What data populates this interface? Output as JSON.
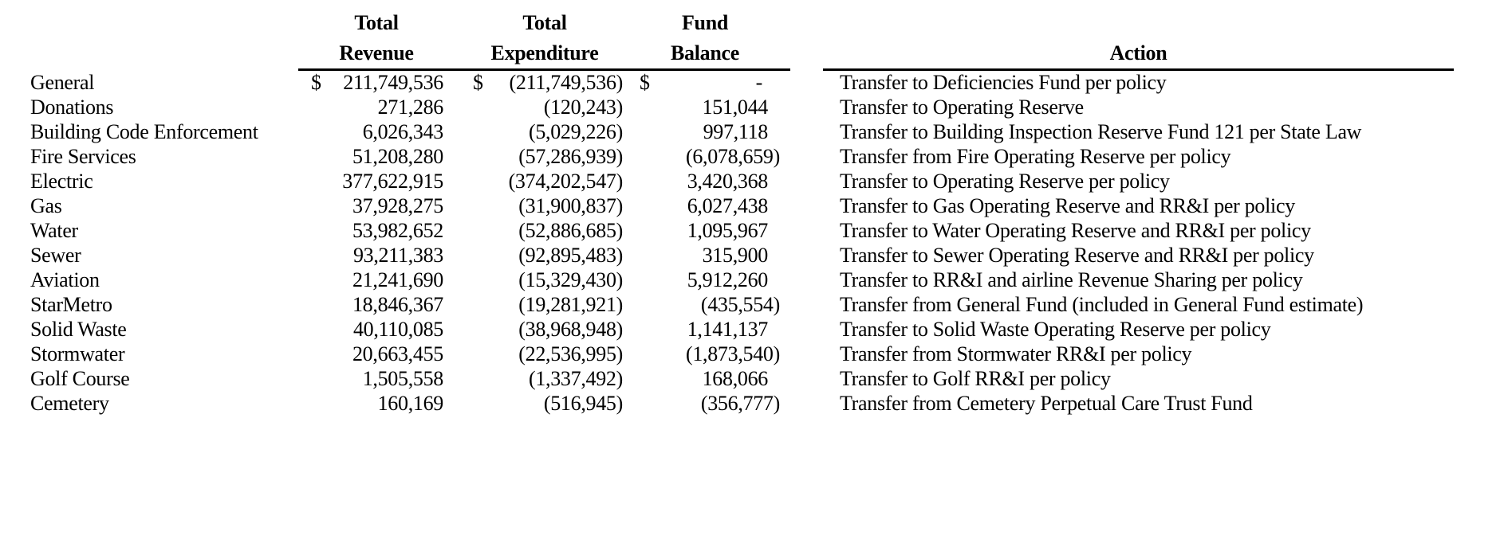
{
  "table": {
    "currency_symbol": "$",
    "headers": {
      "revenue_line1": "Total",
      "revenue_line2": "Revenue",
      "expenditure_line1": "Total",
      "expenditure_line2": "Expenditure",
      "balance_line1": "Fund",
      "balance_line2": "Balance",
      "action": "Action"
    },
    "rows": [
      {
        "fund": "General",
        "revenue_dollar": "$",
        "revenue": "211,749,536",
        "expenditure_dollar": "$",
        "expenditure": "(211,749,536)",
        "balance_dollar": "$",
        "balance": "-",
        "action": "Transfer to Deficiencies Fund per policy"
      },
      {
        "fund": "Donations",
        "revenue": "271,286",
        "expenditure": "(120,243)",
        "balance": "151,044",
        "action": "Transfer to Operating Reserve"
      },
      {
        "fund": "Building Code Enforcement",
        "revenue": "6,026,343",
        "expenditure": "(5,029,226)",
        "balance": "997,118",
        "action": "Transfer to Building Inspection Reserve Fund 121 per State Law"
      },
      {
        "fund": "Fire Services",
        "revenue": "51,208,280",
        "expenditure": "(57,286,939)",
        "balance": "(6,078,659)",
        "action": "Transfer from Fire Operating Reserve per policy"
      },
      {
        "fund": "Electric",
        "revenue": "377,622,915",
        "expenditure": "(374,202,547)",
        "balance": "3,420,368",
        "action": "Transfer to Operating Reserve per policy"
      },
      {
        "fund": "Gas",
        "revenue": "37,928,275",
        "expenditure": "(31,900,837)",
        "balance": "6,027,438",
        "action": "Transfer to Gas Operating Reserve and RR&I per policy"
      },
      {
        "fund": "Water",
        "revenue": "53,982,652",
        "expenditure": "(52,886,685)",
        "balance": "1,095,967",
        "action": "Transfer to Water Operating Reserve and RR&I per policy"
      },
      {
        "fund": "Sewer",
        "revenue": "93,211,383",
        "expenditure": "(92,895,483)",
        "balance": "315,900",
        "action": "Transfer to Sewer Operating Reserve and RR&I per policy"
      },
      {
        "fund": "Aviation",
        "revenue": "21,241,690",
        "expenditure": "(15,329,430)",
        "balance": "5,912,260",
        "action": "Transfer to RR&I and airline Revenue Sharing per policy"
      },
      {
        "fund": "StarMetro",
        "revenue": "18,846,367",
        "expenditure": "(19,281,921)",
        "balance": "(435,554)",
        "action": "Transfer from General Fund (included in General Fund estimate)"
      },
      {
        "fund": "Solid Waste",
        "revenue": "40,110,085",
        "expenditure": "(38,968,948)",
        "balance": "1,141,137",
        "action": "Transfer to Solid Waste Operating Reserve per policy"
      },
      {
        "fund": "Stormwater",
        "revenue": "20,663,455",
        "expenditure": "(22,536,995)",
        "balance": "(1,873,540)",
        "action": "Transfer from Stormwater RR&I per policy"
      },
      {
        "fund": "Golf Course",
        "revenue": "1,505,558",
        "expenditure": "(1,337,492)",
        "balance": "168,066",
        "action": "Transfer to Golf RR&I per policy"
      },
      {
        "fund": "Cemetery",
        "revenue": "160,169",
        "expenditure": "(516,945)",
        "balance": "(356,777)",
        "action": "Transfer from Cemetery Perpetual Care Trust Fund"
      }
    ]
  },
  "colors": {
    "text": "#000000",
    "background": "#ffffff",
    "rule": "#000000"
  }
}
